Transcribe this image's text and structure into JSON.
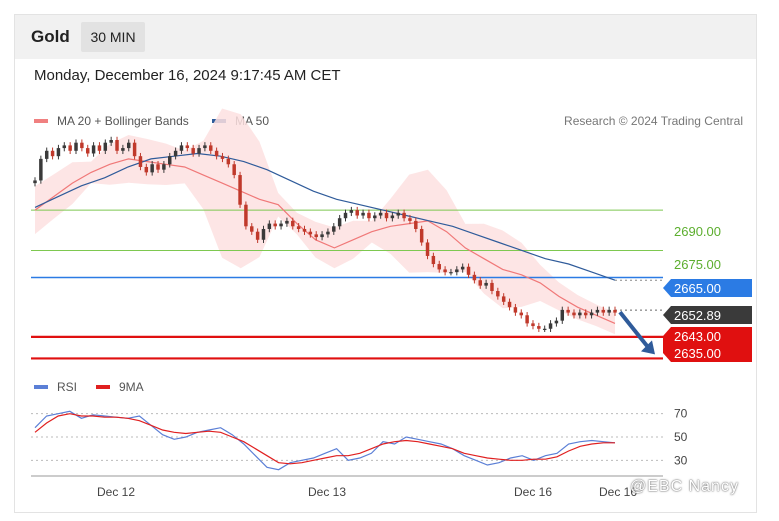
{
  "header": {
    "asset": "Gold",
    "timeframe": "30 MIN"
  },
  "datetime": "Monday, December 16, 2024 9:17:45 AM CET",
  "legend": {
    "items": [
      {
        "label": "MA 20 + Bollinger Bands",
        "color": "#f08080"
      },
      {
        "label": "MA 50",
        "color": "#2f5b9a"
      }
    ],
    "copyright": "Research © 2024 Trading Central"
  },
  "rsi_legend": {
    "items": [
      {
        "label": "RSI",
        "color": "#5b7fd6"
      },
      {
        "label": "9MA",
        "color": "#e02020"
      }
    ]
  },
  "watermark": "@EBC  Nancy",
  "colors": {
    "resistance": "#7ec850",
    "pivot": "#2b7be4",
    "support": "#e01010",
    "current": "#3a3a3a",
    "bollinger": "#fde0e0",
    "ma20": "#f07878",
    "ma50": "#2f5b9a",
    "arrow": "#2f5b9a",
    "candle_up": "#3a3a3a",
    "candle_down": "#c0392b"
  },
  "chart_data": [
    {
      "type": "line",
      "subtype": "candlestick",
      "title": "Gold",
      "timeframe": "30 MIN",
      "x_labels": [
        "Dec 12",
        "Dec 13",
        "Dec 16"
      ],
      "ylim": [
        2627,
        2716
      ],
      "levels": [
        {
          "value": 2690.0,
          "label": "2690.00",
          "role": "resistance"
        },
        {
          "value": 2675.0,
          "label": "2675.00",
          "role": "resistance"
        },
        {
          "value": 2665.0,
          "label": "2665.00",
          "role": "pivot"
        },
        {
          "value": 2652.89,
          "label": "2652.89",
          "role": "current"
        },
        {
          "value": 2643.0,
          "label": "2643.00",
          "role": "support"
        },
        {
          "value": 2635.0,
          "label": "2635.00",
          "role": "support"
        }
      ],
      "forecast_arrow": {
        "from": 2652.89,
        "to": 2635.0,
        "direction": "down"
      },
      "series": [
        {
          "name": "Close",
          "values": [
            2701,
            2709,
            2712,
            2710,
            2713,
            2714,
            2712,
            2715,
            2713,
            2711,
            2714,
            2712,
            2715,
            2716,
            2712,
            2713,
            2715,
            2710,
            2706,
            2704,
            2707,
            2705,
            2707,
            2710,
            2712,
            2714,
            2713,
            2711,
            2713,
            2714,
            2712,
            2710,
            2709,
            2707,
            2703,
            2692,
            2684,
            2682,
            2679,
            2683,
            2685,
            2684,
            2685,
            2686,
            2684,
            2683,
            2682,
            2681,
            2680,
            2681,
            2682,
            2684,
            2687,
            2689,
            2690,
            2688,
            2689,
            2687,
            2688,
            2689,
            2687,
            2688,
            2689,
            2687,
            2686,
            2683,
            2678,
            2673,
            2670,
            2668,
            2667,
            2667,
            2668,
            2669,
            2666,
            2664,
            2662,
            2663,
            2660,
            2658,
            2656,
            2654,
            2652,
            2651,
            2648,
            2647,
            2646,
            2646,
            2648,
            2649,
            2653,
            2652,
            2651,
            2652,
            2651,
            2652,
            2653,
            2652,
            2653,
            2652
          ]
        },
        {
          "name": "MA 20",
          "values": [
            2690,
            2695,
            2700,
            2704,
            2707,
            2709,
            2708,
            2707,
            2706,
            2703,
            2700,
            2697,
            2694,
            2692,
            2685,
            2679,
            2676,
            2679,
            2682,
            2684,
            2685,
            2686,
            2682,
            2676,
            2672,
            2668,
            2666,
            2663,
            2658,
            2654,
            2651,
            2648
          ]
        },
        {
          "name": "MA 50",
          "values": [
            2691,
            2695,
            2699,
            2702,
            2706,
            2709,
            2710,
            2711,
            2710,
            2708,
            2705,
            2701,
            2697,
            2694,
            2692,
            2690,
            2688,
            2686,
            2684,
            2681,
            2678,
            2675,
            2672,
            2670,
            2667,
            2664
          ]
        }
      ]
    },
    {
      "type": "line",
      "title": "RSI",
      "ylim": [
        20,
        80
      ],
      "y_ticks": [
        30,
        50,
        70
      ],
      "series": [
        {
          "name": "RSI",
          "values": [
            58,
            68,
            70,
            72,
            66,
            69,
            68,
            67,
            66,
            68,
            60,
            52,
            48,
            50,
            54,
            56,
            58,
            52,
            44,
            34,
            24,
            22,
            28,
            30,
            32,
            36,
            40,
            30,
            32,
            36,
            46,
            44,
            50,
            48,
            46,
            44,
            40,
            34,
            30,
            26,
            28,
            32,
            34,
            30,
            34,
            36,
            44,
            46,
            47,
            46,
            45
          ]
        },
        {
          "name": "9MA",
          "values": [
            54,
            62,
            68,
            70,
            68,
            68,
            67,
            67,
            66,
            64,
            60,
            56,
            54,
            53,
            54,
            55,
            54,
            50,
            46,
            40,
            34,
            28,
            27,
            28,
            30,
            32,
            34,
            34,
            36,
            40,
            44,
            46,
            47,
            46,
            44,
            42,
            40,
            36,
            34,
            32,
            31,
            30,
            30,
            31,
            31,
            33,
            38,
            42,
            44,
            45,
            45
          ]
        }
      ]
    }
  ]
}
